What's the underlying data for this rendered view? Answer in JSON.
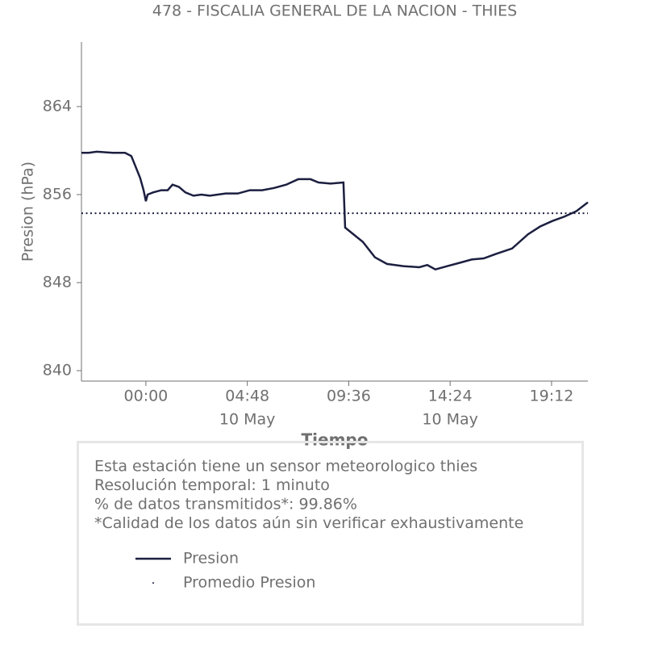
{
  "chart_data": {
    "type": "line",
    "title": "478 - FISCALIA GENERAL DE LA NACION - THIES",
    "y_label": "Presion (hPa)",
    "x_label": "Tiempo",
    "xlim": [
      -3.05,
      20.92
    ],
    "ylim": [
      839.05,
      869.87
    ],
    "yticks": [
      840,
      848,
      856,
      864
    ],
    "xticks": [
      {
        "value": 0,
        "label": "00:00"
      },
      {
        "value": 4.8,
        "label": "04:48",
        "date_label": "10 May"
      },
      {
        "value": 9.6,
        "label": "09:36"
      },
      {
        "value": 14.4,
        "label": "14:24",
        "date_label": "10 May"
      },
      {
        "value": 19.2,
        "label": "19:12"
      }
    ],
    "series": [
      {
        "name": "Presion",
        "color": "#1c1f40",
        "style": "solid",
        "x": [
          -3.05,
          -2.71,
          -2.33,
          -1.56,
          -0.99,
          -0.69,
          -0.5,
          -0.27,
          -0.11,
          0,
          0.08,
          0.34,
          0.73,
          1.03,
          1.26,
          1.56,
          1.87,
          2.25,
          2.63,
          3.02,
          3.4,
          3.78,
          4.35,
          4.92,
          5.5,
          6.07,
          6.64,
          7.21,
          7.79,
          8.17,
          8.74,
          9.35,
          9.43,
          9.69,
          10.27,
          10.84,
          11.41,
          12.18,
          12.94,
          13.32,
          13.7,
          14.27,
          14.85,
          15.42,
          15.99,
          16.56,
          17.33,
          18.09,
          18.66,
          19.24,
          19.81,
          20.38,
          20.92
        ],
        "values": [
          859.8,
          859.8,
          859.9,
          859.8,
          859.8,
          859.5,
          858.6,
          857.5,
          856.4,
          855.4,
          856.0,
          856.2,
          856.4,
          856.4,
          856.9,
          856.7,
          856.2,
          855.9,
          856.0,
          855.9,
          856.0,
          856.1,
          856.1,
          856.4,
          856.4,
          856.6,
          856.9,
          857.4,
          857.4,
          857.1,
          857.0,
          857.1,
          853.0,
          852.6,
          851.7,
          850.3,
          849.7,
          849.5,
          849.4,
          849.6,
          849.2,
          849.5,
          849.8,
          850.1,
          850.2,
          850.6,
          851.1,
          852.4,
          853.1,
          853.6,
          854.0,
          854.5,
          855.3
        ]
      },
      {
        "name": "Promedio Presion",
        "color": "#1c1f40",
        "style": "dotted",
        "x": [
          -3.05,
          20.92
        ],
        "values": [
          854.3,
          854.3
        ]
      }
    ],
    "info": [
      "Esta estación tiene un sensor meteorologico thies",
      "Resolución temporal: 1 minuto",
      "% de datos transmitidos*: 99.86%",
      "*Calidad de los datos aún sin verificar exhaustivamente"
    ]
  }
}
